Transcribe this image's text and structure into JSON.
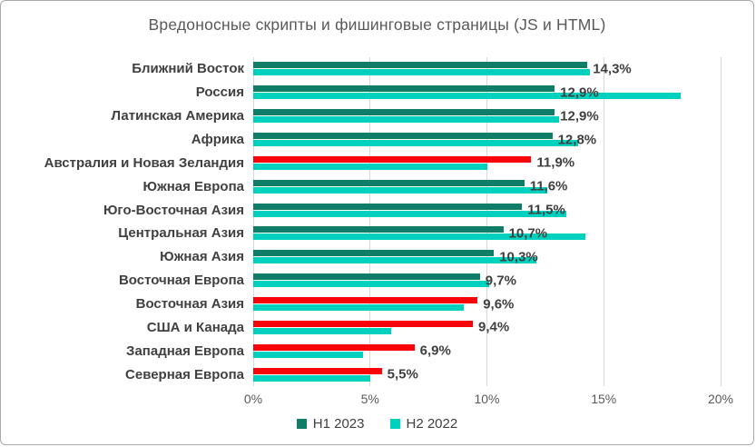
{
  "title": "Вредоносные скрипты и фишинговые страницы (JS и HTML)",
  "colors": {
    "h1_2023": "#107d68",
    "h2_2022": "#00d1be",
    "h1_highlight_red": "#f90408",
    "gridline": "#d9d9d9",
    "category_text": "#404040",
    "value_text": "#3f3f3f",
    "axis_text": "#595959",
    "card_border": "#a9a9a9"
  },
  "x_axis": {
    "ticks": [
      "0%",
      "5%",
      "10%",
      "15%",
      "20%"
    ],
    "min": 0,
    "max": 20
  },
  "legend": {
    "items": [
      {
        "label": "H1 2023",
        "color": "#107d68"
      },
      {
        "label": "H2 2022",
        "color": "#00d1be"
      }
    ]
  },
  "chart_data": {
    "type": "bar",
    "orientation": "horizontal",
    "title": "Вредоносные скрипты и фишинговые страницы (JS и HTML)",
    "xlabel": "",
    "ylabel": "",
    "xlim": [
      0,
      20
    ],
    "grid": true,
    "legend_position": "bottom",
    "categories": [
      "Ближний Восток",
      "Россия",
      "Латинская Америка",
      "Африка",
      "Австралия и Новая Зеландия",
      "Южная Европа",
      "Юго-Восточная Азия",
      "Центральная Азия",
      "Южная Азия",
      "Восточная Европа",
      "Восточная Азия",
      "США и Канада",
      "Западная Европа",
      "Северная Европа"
    ],
    "series": [
      {
        "name": "H1 2023",
        "values": [
          14.3,
          12.9,
          12.9,
          12.8,
          11.9,
          11.6,
          11.5,
          10.7,
          10.3,
          9.7,
          9.6,
          9.4,
          6.9,
          5.5
        ]
      },
      {
        "name": "H2 2022",
        "values": [
          14.4,
          18.3,
          13.1,
          13.9,
          10.0,
          12.6,
          13.4,
          14.2,
          12.1,
          10.1,
          9.0,
          5.9,
          4.7,
          5.0
        ]
      }
    ],
    "value_labels": [
      "14,3%",
      "12,9%",
      "12,9%",
      "12,8%",
      "11,9%",
      "11,6%",
      "11,5%",
      "10,7%",
      "10,3%",
      "9,7%",
      "9,6%",
      "9,4%",
      "6,9%",
      "5,5%"
    ],
    "highlighted_category_indices": [
      4,
      10,
      11,
      12,
      13
    ]
  }
}
